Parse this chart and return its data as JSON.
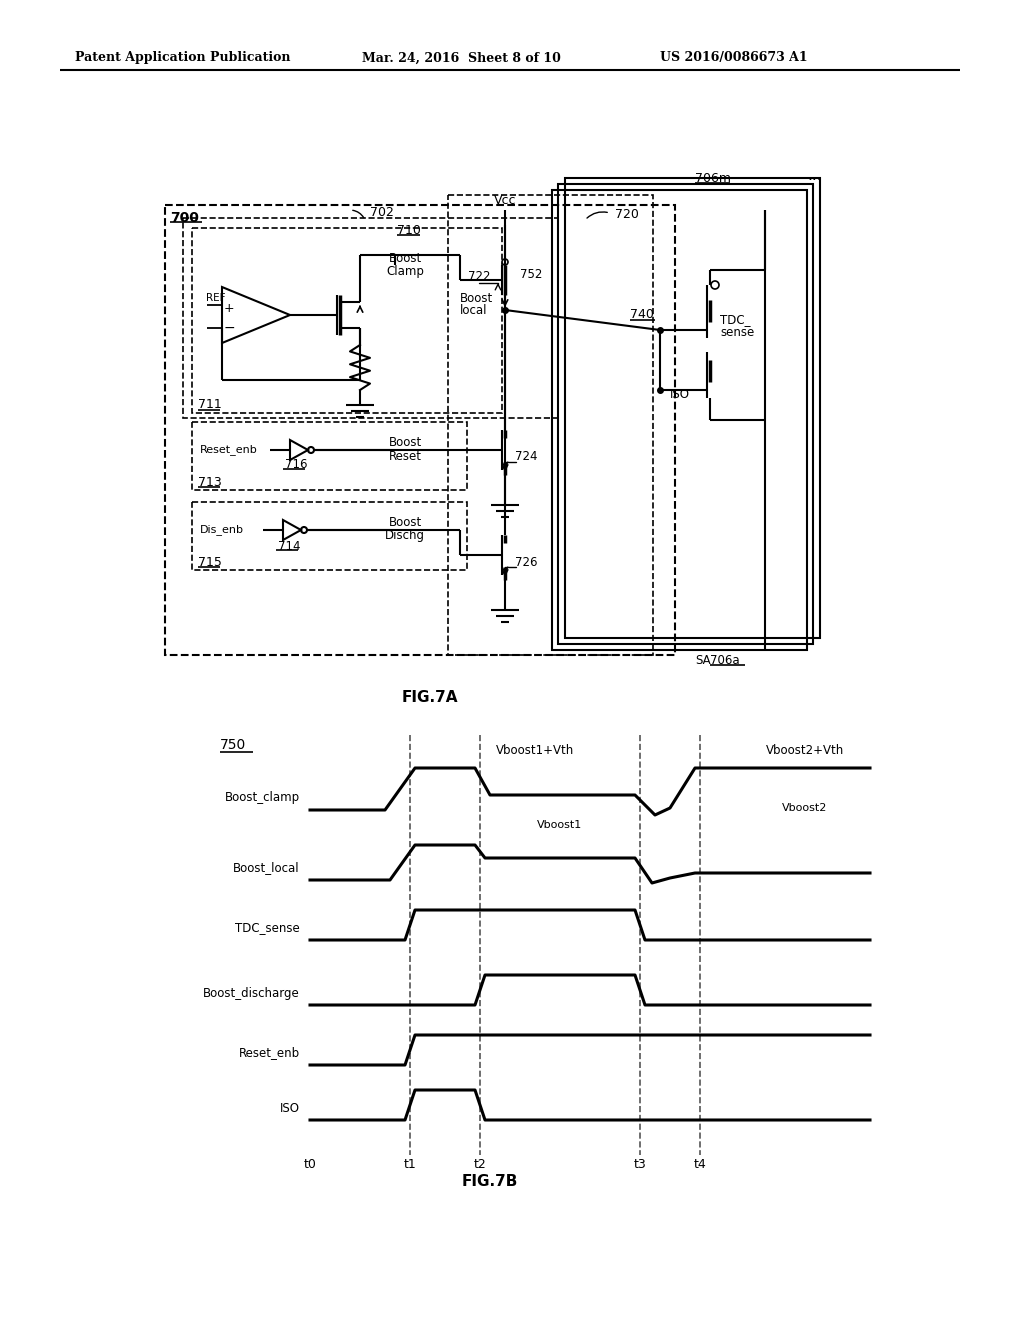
{
  "bg_color": "#ffffff",
  "header_left": "Patent Application Publication",
  "header_center": "Mar. 24, 2016  Sheet 8 of 10",
  "header_right": "US 2016/0086673 A1",
  "fig7a_label": "FIG.7A",
  "fig7b_label": "FIG.7B",
  "timing_signals": [
    "Boost_clamp",
    "Boost_local",
    "TDC_sense",
    "Boost_discharge",
    "Reset_enb",
    "ISO"
  ],
  "time_labels": [
    "t0",
    "t1",
    "t2",
    "t3",
    "t4"
  ]
}
